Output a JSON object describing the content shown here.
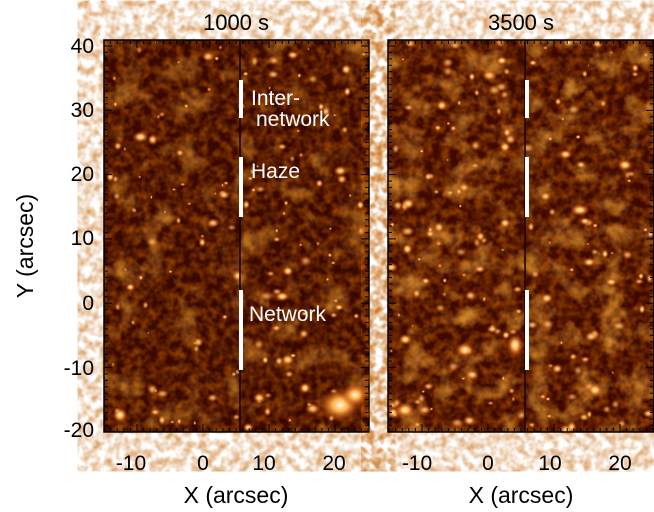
{
  "panels": [
    {
      "title": "1000 s",
      "labels": {
        "internetwork": "Inter-\nnetwork",
        "haze": "Haze",
        "network": "Network"
      }
    },
    {
      "title": "3500 s"
    }
  ],
  "axes": {
    "xlabel": "X (arcsec)",
    "ylabel": "Y (arcsec)",
    "x_ticks": [
      "-10",
      "0",
      "10",
      "20"
    ],
    "y_ticks": [
      "40",
      "30",
      "20",
      "10",
      "0",
      "-10",
      "-20"
    ]
  },
  "colors": {
    "background_dark": "#2a0500",
    "background_mid": "#6a1400",
    "bright": "#ff7a1a",
    "hot": "#fff2a8",
    "marker": "#ffffff"
  }
}
